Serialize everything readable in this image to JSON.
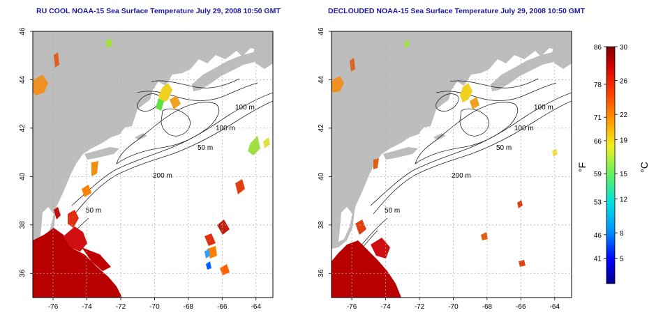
{
  "colors": {
    "land": "#bdbdbd",
    "ocean": "#ffffff",
    "title": "#1a1aa6",
    "grid": "#b0b0b0",
    "contour": "#202020"
  },
  "panels": [
    {
      "title": "RU COOL NOAA-15 Sea Surface Temperature July 29, 2008 10:50 GMT",
      "x_ticks": [
        "-76",
        "-74",
        "-72",
        "-70",
        "-68",
        "-66",
        "-64"
      ],
      "y_ticks": [
        "36",
        "38",
        "40",
        "42",
        "44",
        "46"
      ],
      "contour_labels": [
        "100 m",
        "100 m",
        "50 m",
        "200 m",
        "50 m"
      ]
    },
    {
      "title": "DECLOUDED NOAA-15 Sea Surface Temperature July 29, 2008 10:50 GMT",
      "x_ticks": [
        "-76",
        "-74",
        "-72",
        "-70",
        "-68",
        "-66",
        "-64"
      ],
      "y_ticks": [
        "36",
        "38",
        "40",
        "42",
        "44",
        "46"
      ],
      "contour_labels": [
        "100 m",
        "100 m",
        "50 m",
        "200 m",
        "50 m"
      ]
    }
  ],
  "colorbar": {
    "f_label": "°F",
    "c_label": "°C",
    "f_ticks": [
      "86",
      "78",
      "71",
      "66",
      "59",
      "53",
      "46",
      "41"
    ],
    "c_ticks": [
      "30",
      "26",
      "22",
      "19",
      "15",
      "12",
      "8",
      "5"
    ],
    "scale_min_c": 2,
    "scale_max_c": 30
  }
}
